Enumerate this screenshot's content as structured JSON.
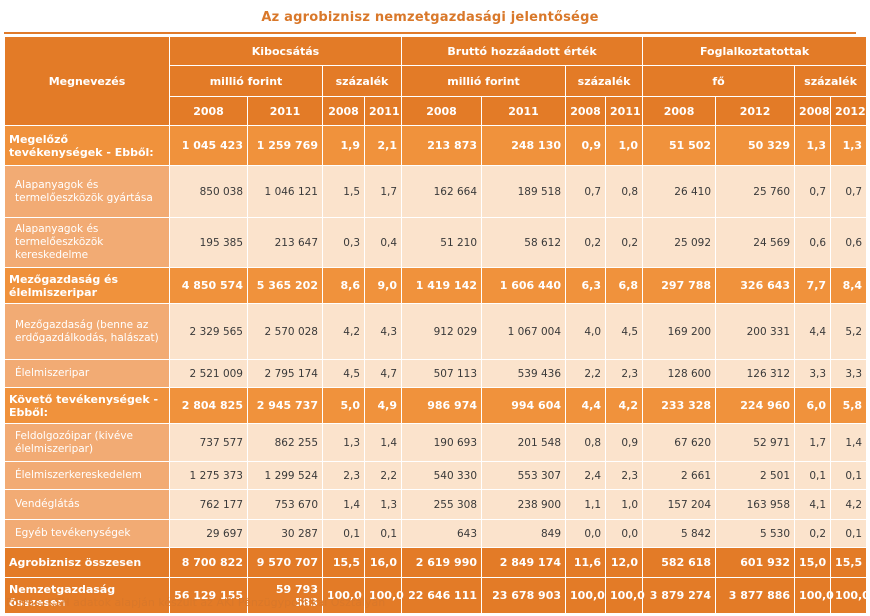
{
  "title": "Az agrobiznisz nemzetgazdasági jelentősége",
  "header": {
    "name_col": "Megnevezés",
    "groups": [
      "Kibocsátás",
      "Bruttó hozzáadott érték",
      "Foglalkoztatottak"
    ],
    "units": [
      "millió forint",
      "százalék",
      "millió forint",
      "százalék",
      "fő",
      "százalék"
    ],
    "years": [
      "2008",
      "2011",
      "2008",
      "2011",
      "2008",
      "2011",
      "2008",
      "2011",
      "2008",
      "2012",
      "2008",
      "2012"
    ]
  },
  "rows": [
    {
      "kind": "main",
      "name": "Megelőző tevékenységek - Ebből:",
      "cells": [
        "1 045 423",
        "1 259 769",
        "1,9",
        "2,1",
        "213 873",
        "248 130",
        "0,9",
        "1,0",
        "51 502",
        "50 329",
        "1,3",
        "1,3"
      ]
    },
    {
      "kind": "sub",
      "name": "Alapanyagok és termelőeszközök gyártása",
      "cells": [
        "850 038",
        "1 046 121",
        "1,5",
        "1,7",
        "162 664",
        "189 518",
        "0,7",
        "0,8",
        "26 410",
        "25 760",
        "0,7",
        "0,7"
      ]
    },
    {
      "kind": "sub",
      "name": "Alapanyagok és termelőeszközök kereskedelme",
      "cells": [
        "195 385",
        "213 647",
        "0,3",
        "0,4",
        "51 210",
        "58 612",
        "0,2",
        "0,2",
        "25 092",
        "24 569",
        "0,6",
        "0,6"
      ]
    },
    {
      "kind": "main",
      "name": "Mezőgazdaság és élelmiszeripar",
      "cells": [
        "4 850 574",
        "5 365 202",
        "8,6",
        "9,0",
        "1 419 142",
        "1 606 440",
        "6,3",
        "6,8",
        "297 788",
        "326 643",
        "7,7",
        "8,4"
      ]
    },
    {
      "kind": "sub",
      "name": "Mezőgazdaság (benne az erdőgazdálkodás, halászat)",
      "cells": [
        "2 329 565",
        "2 570 028",
        "4,2",
        "4,3",
        "912 029",
        "1 067 004",
        "4,0",
        "4,5",
        "169 200",
        "200 331",
        "4,4",
        "5,2"
      ]
    },
    {
      "kind": "sub",
      "name": "Élelmiszeripar",
      "cells": [
        "2 521 009",
        "2 795 174",
        "4,5",
        "4,7",
        "507 113",
        "539 436",
        "2,2",
        "2,3",
        "128 600",
        "126 312",
        "3,3",
        "3,3"
      ]
    },
    {
      "kind": "main",
      "name": "Követő tevékenységek - Ebből:",
      "cells": [
        "2 804 825",
        "2 945 737",
        "5,0",
        "4,9",
        "986 974",
        "994 604",
        "4,4",
        "4,2",
        "233 328",
        "224 960",
        "6,0",
        "5,8"
      ]
    },
    {
      "kind": "sub",
      "name": "Feldolgozóipar (kivéve élelmiszeripar)",
      "cells": [
        "737 577",
        "862 255",
        "1,3",
        "1,4",
        "190 693",
        "201 548",
        "0,8",
        "0,9",
        "67 620",
        "52 971",
        "1,7",
        "1,4"
      ]
    },
    {
      "kind": "sub",
      "name": "Élelmiszerkereskedelem",
      "cells": [
        "1 275 373",
        "1 299 524",
        "2,3",
        "2,2",
        "540 330",
        "553 307",
        "2,4",
        "2,3",
        "2 661",
        "2 501",
        "0,1",
        "0,1"
      ]
    },
    {
      "kind": "sub",
      "name": "Vendéglátás",
      "cells": [
        "762 177",
        "753 670",
        "1,4",
        "1,3",
        "255 308",
        "238 900",
        "1,1",
        "1,0",
        "157 204",
        "163 958",
        "4,1",
        "4,2"
      ]
    },
    {
      "kind": "sub",
      "name": "Egyéb tevékenységek",
      "cells": [
        "29 697",
        "30 287",
        "0,1",
        "0,1",
        "643",
        "849",
        "0,0",
        "0,0",
        "5 842",
        "5 530",
        "0,2",
        "0,1"
      ]
    },
    {
      "kind": "total",
      "name": "Agrobiznisz összesen",
      "cells": [
        "8 700 822",
        "9 570 707",
        "15,5",
        "16,0",
        "2 619 990",
        "2 849 174",
        "11,6",
        "12,0",
        "582 618",
        "601 932",
        "15,0",
        "15,5"
      ]
    },
    {
      "kind": "total",
      "name": "Nemzetgazdaság összesen",
      "cells": [
        "56 129 155",
        "59 793 583",
        "100,0",
        "100,0",
        "22 646 111",
        "23 678 903",
        "100,0",
        "100,0",
        "3 879 274",
        "3 877 886",
        "100,0",
        "100,0"
      ]
    }
  ],
  "footer": "Forrás: KSH adatok alapján készült az AKI Pénzügypolitikai Osztályán"
}
